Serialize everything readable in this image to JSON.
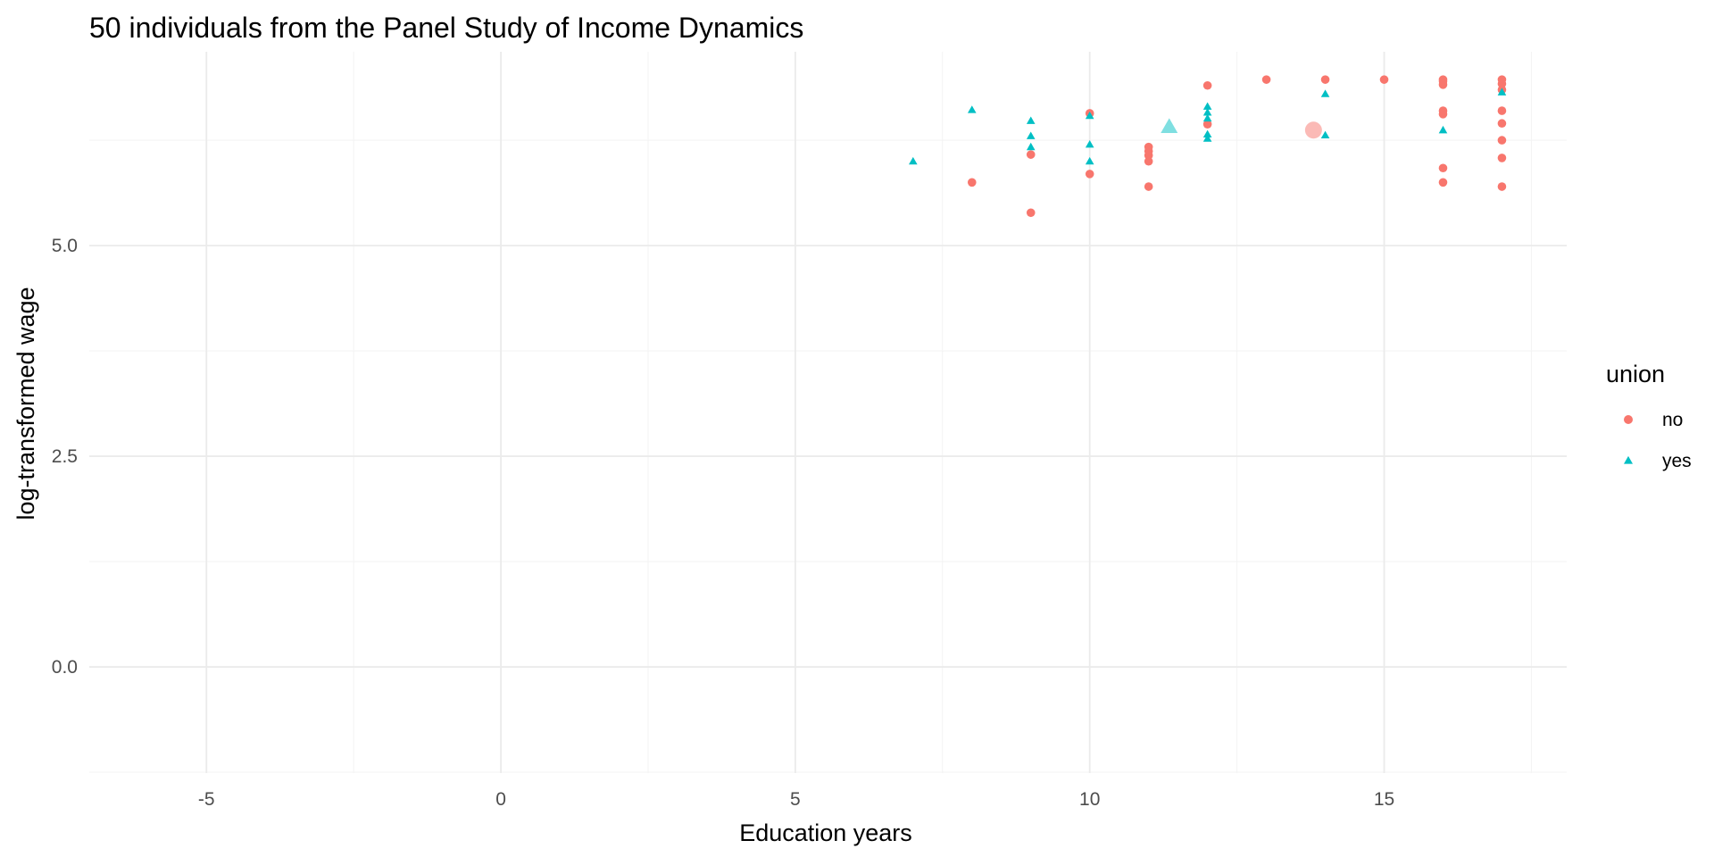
{
  "chart_data": {
    "type": "scatter",
    "title": "50 individuals from the Panel Study of Income Dynamics",
    "xlabel": "Education years",
    "ylabel": "log-transformed wage",
    "xlim": [
      -6.99,
      18.1
    ],
    "ylim": [
      -1.26,
      7.3
    ],
    "x_ticks": [
      -5,
      0,
      5,
      10,
      15
    ],
    "x_tick_labels": [
      "-5",
      "0",
      "5",
      "10",
      "15"
    ],
    "y_ticks": [
      0,
      2.5,
      5
    ],
    "y_tick_labels": [
      "0.0",
      "2.5",
      "5.0"
    ],
    "x_minor_ticks": [
      -2.5,
      2.5,
      7.5,
      12.5,
      17.5
    ],
    "y_minor_ticks": [
      -1.25,
      1.25,
      3.75,
      6.25
    ],
    "grid": true,
    "legend_position": "right",
    "legend": {
      "title": "union",
      "entries": [
        {
          "label": "no",
          "shape": "circle",
          "color": "#F8766D"
        },
        {
          "label": "yes",
          "shape": "triangle",
          "color": "#00BFC4"
        }
      ]
    },
    "series": [
      {
        "name": "no",
        "shape": "circle",
        "color": "#F8766D",
        "points": [
          {
            "x": 8,
            "y": 5.75
          },
          {
            "x": 9,
            "y": 5.39
          },
          {
            "x": 9,
            "y": 6.08
          },
          {
            "x": 10,
            "y": 5.85
          },
          {
            "x": 10,
            "y": 6.57
          },
          {
            "x": 11,
            "y": 5.7
          },
          {
            "x": 11,
            "y": 6.0
          },
          {
            "x": 11,
            "y": 6.07
          },
          {
            "x": 11,
            "y": 6.12
          },
          {
            "x": 11,
            "y": 6.17
          },
          {
            "x": 12,
            "y": 6.44
          },
          {
            "x": 12,
            "y": 6.9
          },
          {
            "x": 13,
            "y": 6.97
          },
          {
            "x": 14,
            "y": 6.97
          },
          {
            "x": 15,
            "y": 6.97
          },
          {
            "x": 16,
            "y": 5.75
          },
          {
            "x": 16,
            "y": 5.92
          },
          {
            "x": 16,
            "y": 6.56
          },
          {
            "x": 16,
            "y": 6.6
          },
          {
            "x": 16,
            "y": 6.91
          },
          {
            "x": 16,
            "y": 6.95
          },
          {
            "x": 16,
            "y": 6.97
          },
          {
            "x": 17,
            "y": 5.7
          },
          {
            "x": 17,
            "y": 6.04
          },
          {
            "x": 17,
            "y": 6.25
          },
          {
            "x": 17,
            "y": 6.45
          },
          {
            "x": 17,
            "y": 6.6
          },
          {
            "x": 17,
            "y": 6.85
          },
          {
            "x": 17,
            "y": 6.92
          },
          {
            "x": 17,
            "y": 6.97
          }
        ]
      },
      {
        "name": "yes",
        "shape": "triangle",
        "color": "#00BFC4",
        "points": [
          {
            "x": 7,
            "y": 6.0
          },
          {
            "x": 8,
            "y": 6.61
          },
          {
            "x": 9,
            "y": 6.17
          },
          {
            "x": 9,
            "y": 6.3
          },
          {
            "x": 9,
            "y": 6.48
          },
          {
            "x": 10,
            "y": 6.0
          },
          {
            "x": 10,
            "y": 6.2
          },
          {
            "x": 10,
            "y": 6.54
          },
          {
            "x": 12,
            "y": 6.27
          },
          {
            "x": 12,
            "y": 6.32
          },
          {
            "x": 12,
            "y": 6.51
          },
          {
            "x": 12,
            "y": 6.58
          },
          {
            "x": 12,
            "y": 6.65
          },
          {
            "x": 14,
            "y": 6.31
          },
          {
            "x": 14,
            "y": 6.8
          },
          {
            "x": 16,
            "y": 6.37
          },
          {
            "x": 17,
            "y": 6.82
          }
        ]
      }
    ],
    "group_means": [
      {
        "name": "no",
        "shape": "circle",
        "color": "#F8766D",
        "x": 13.8,
        "y": 6.37
      },
      {
        "name": "yes",
        "shape": "triangle",
        "color": "#00BFC4",
        "x": 11.35,
        "y": 6.41
      }
    ]
  }
}
